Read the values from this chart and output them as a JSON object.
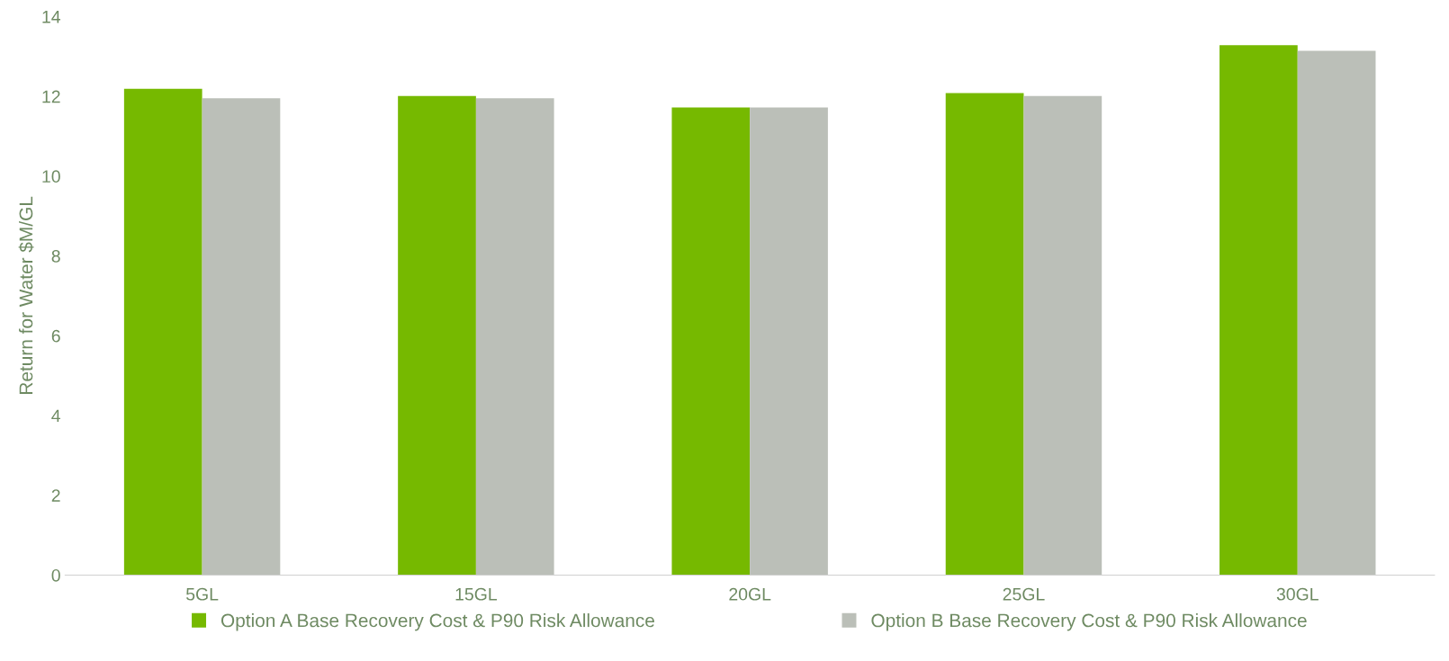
{
  "chart_data": {
    "type": "bar",
    "ylabel": "Return for Water $M/GL",
    "categories": [
      "5GL",
      "15GL",
      "20GL",
      "25GL",
      "30GL"
    ],
    "series": [
      {
        "name": "Option A Base Recovery Cost & P90 Risk Allowance",
        "color": "#76b900",
        "values": [
          12.19,
          12.01,
          11.72,
          12.08,
          13.28
        ]
      },
      {
        "name": "Option B Base Recovery Cost & P90 Risk Allowance",
        "color": "#bbbfb8",
        "values": [
          11.95,
          11.95,
          11.72,
          12.01,
          13.14
        ]
      }
    ],
    "ylim": [
      0,
      14
    ],
    "yticks": [
      0,
      2,
      4,
      6,
      8,
      10,
      12,
      14
    ],
    "legend": "bottom"
  }
}
